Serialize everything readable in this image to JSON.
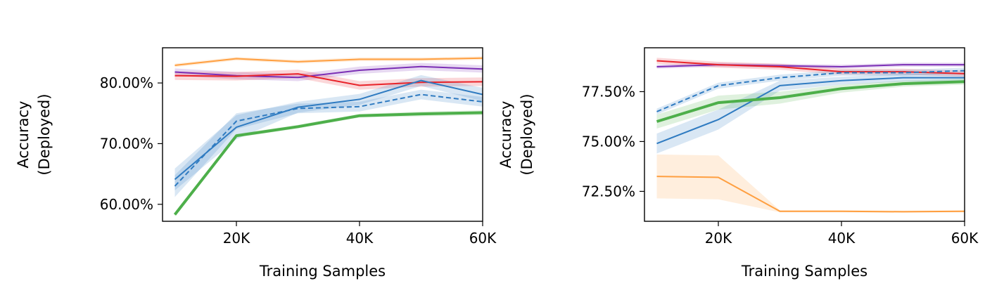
{
  "chart_data": [
    {
      "type": "line",
      "title": "",
      "xlabel": "Training Samples",
      "ylabel": [
        "Accuracy",
        "(Deployed)"
      ],
      "x": [
        10000,
        20000,
        30000,
        40000,
        50000,
        60000
      ],
      "xlim": [
        8000,
        60000
      ],
      "ylim": [
        57.2,
        85.8
      ],
      "xticks": [
        20000,
        40000,
        60000
      ],
      "xtick_labels": [
        "20K",
        "40K",
        "60K"
      ],
      "yticks": [
        60,
        70,
        80
      ],
      "ytick_labels": [
        "60.00%",
        "70.00%",
        "80.00%"
      ],
      "grid": false,
      "legend": "none",
      "series": [
        {
          "color": "#ff9f40",
          "width": 2,
          "dash": "",
          "values": [
            82.9,
            84.0,
            83.5,
            83.9,
            83.9,
            84.1
          ],
          "band": [
            0.3,
            0.3,
            0.3,
            0.3,
            0.3,
            0.3
          ]
        },
        {
          "color": "#7b2fb5",
          "width": 2,
          "dash": "",
          "values": [
            81.8,
            81.2,
            80.9,
            82.1,
            82.7,
            82.3
          ],
          "band": [
            0.6,
            0.6,
            0.6,
            0.6,
            0.6,
            0.6
          ]
        },
        {
          "color": "#e8232a",
          "width": 2,
          "dash": "",
          "values": [
            81.2,
            81.1,
            81.5,
            79.6,
            80.1,
            80.2
          ],
          "band": [
            0.7,
            0.7,
            0.7,
            0.7,
            0.7,
            0.7
          ]
        },
        {
          "color": "#2f7bc1",
          "width": 2,
          "dash": "",
          "values": [
            64.1,
            72.7,
            76.0,
            77.3,
            80.4,
            78.1
          ],
          "band": [
            1.8,
            2.0,
            0.9,
            0.9,
            0.9,
            1.1
          ]
        },
        {
          "color": "#2f7bc1",
          "width": 2,
          "dash": "7,4",
          "values": [
            63.0,
            73.7,
            75.8,
            76.1,
            78.1,
            76.9
          ],
          "band": [
            1.8,
            1.3,
            0.8,
            0.8,
            0.8,
            0.8
          ]
        },
        {
          "color": "#4daf4a",
          "width": 4,
          "dash": "",
          "values": [
            58.3,
            71.3,
            72.8,
            74.6,
            74.9,
            75.1
          ],
          "band": [
            0.3,
            0.3,
            0.3,
            0.3,
            0.4,
            0.4
          ]
        }
      ]
    },
    {
      "type": "line",
      "title": "",
      "xlabel": "Training Samples",
      "ylabel": [
        "Accuracy",
        "(Deployed)"
      ],
      "x": [
        10000,
        20000,
        30000,
        40000,
        50000,
        60000
      ],
      "xlim": [
        8000,
        60000
      ],
      "ylim": [
        71.0,
        79.7
      ],
      "xticks": [
        20000,
        40000,
        60000
      ],
      "xtick_labels": [
        "20K",
        "40K",
        "60K"
      ],
      "yticks": [
        72.5,
        75,
        77.5
      ],
      "ytick_labels": [
        "72.50%",
        "75.00%",
        "77.50%"
      ],
      "grid": false,
      "legend": "none",
      "series": [
        {
          "color": "#ff9f40",
          "width": 2,
          "dash": "",
          "values": [
            73.25,
            73.2,
            71.5,
            71.5,
            71.48,
            71.5
          ],
          "band": [
            1.1,
            1.1,
            0.05,
            0.05,
            0.05,
            0.05
          ]
        },
        {
          "color": "#7b2fb5",
          "width": 2,
          "dash": "",
          "values": [
            78.75,
            78.85,
            78.8,
            78.75,
            78.85,
            78.85
          ],
          "band": [
            0.1,
            0.1,
            0.1,
            0.1,
            0.1,
            0.1
          ]
        },
        {
          "color": "#e8232a",
          "width": 2,
          "dash": "",
          "values": [
            79.05,
            78.85,
            78.75,
            78.5,
            78.5,
            78.4
          ],
          "band": [
            0.15,
            0.15,
            0.15,
            0.15,
            0.15,
            0.15
          ]
        },
        {
          "color": "#2f7bc1",
          "width": 2,
          "dash": "",
          "values": [
            74.9,
            76.1,
            77.8,
            78.05,
            78.2,
            78.2
          ],
          "band": [
            0.5,
            0.5,
            0.25,
            0.2,
            0.2,
            0.2
          ]
        },
        {
          "color": "#2f7bc1",
          "width": 2,
          "dash": "7,4",
          "values": [
            76.5,
            77.8,
            78.2,
            78.45,
            78.45,
            78.55
          ],
          "band": [
            0.15,
            0.15,
            0.15,
            0.15,
            0.15,
            0.15
          ]
        },
        {
          "color": "#4daf4a",
          "width": 4,
          "dash": "",
          "values": [
            76.0,
            76.95,
            77.2,
            77.65,
            77.9,
            78.0
          ],
          "band": [
            0.35,
            0.35,
            0.3,
            0.2,
            0.15,
            0.15
          ]
        }
      ]
    }
  ]
}
